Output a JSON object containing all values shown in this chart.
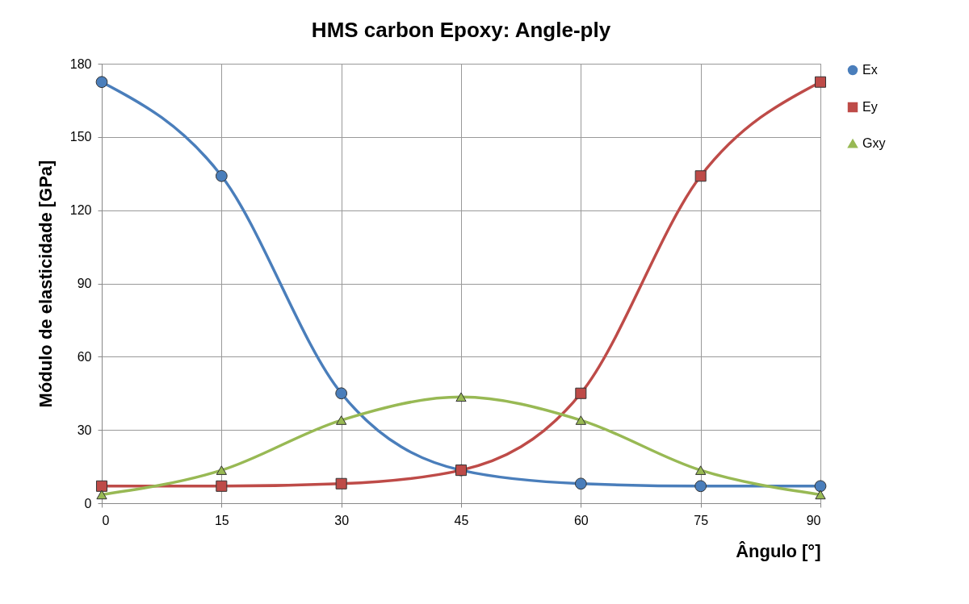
{
  "chart_data": {
    "type": "line",
    "title": "HMS carbon Epoxy: Angle-ply",
    "xlabel": "Ângulo [°]",
    "ylabel": "Módulo de elasticidade [GPa]",
    "x": [
      0,
      15,
      30,
      45,
      60,
      75,
      90
    ],
    "series": [
      {
        "name": "Ex",
        "color": "#4a7ebb",
        "marker": "circle",
        "values": [
          172.5,
          134,
          45,
          13.5,
          8,
          7,
          7
        ]
      },
      {
        "name": "Ey",
        "color": "#be4b48",
        "marker": "square",
        "values": [
          7,
          7,
          8,
          13.5,
          45,
          134,
          172.5
        ]
      },
      {
        "name": "Gxy",
        "color": "#98b954",
        "marker": "triangle",
        "values": [
          3.5,
          13.5,
          34,
          43.5,
          34,
          13.5,
          3.5
        ]
      }
    ],
    "xlim": [
      0,
      90
    ],
    "xticks": [
      0,
      15,
      30,
      45,
      60,
      75,
      90
    ],
    "ylim": [
      0,
      180
    ],
    "yticks": [
      0,
      30,
      60,
      90,
      120,
      150,
      180
    ],
    "grid": true,
    "legend": "right",
    "line_style": "solid"
  }
}
